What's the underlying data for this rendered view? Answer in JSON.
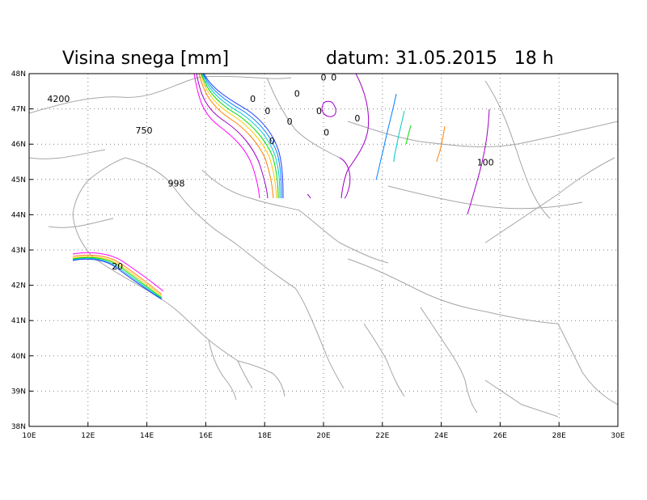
{
  "title": "Visina snega [mm]",
  "datum": "datum: 31.05.2015   18 h",
  "chart_data": {
    "type": "contour",
    "xlim": [
      10,
      30
    ],
    "ylim": [
      38,
      48
    ],
    "x_ticks": [
      "10E",
      "12E",
      "14E",
      "16E",
      "18E",
      "20E",
      "22E",
      "24E",
      "26E",
      "28E",
      "30E"
    ],
    "y_ticks": [
      "38N",
      "39N",
      "40N",
      "41N",
      "42N",
      "43N",
      "44N",
      "45N",
      "46N",
      "47N",
      "48N"
    ],
    "grid": true,
    "contour_labels": [
      {
        "text": "4200",
        "lon": 11.0,
        "lat": 47.2
      },
      {
        "text": "750",
        "lon": 13.9,
        "lat": 46.3
      },
      {
        "text": "998",
        "lon": 15.0,
        "lat": 44.8
      },
      {
        "text": "20",
        "lon": 13.0,
        "lat": 42.45
      },
      {
        "text": "0",
        "lon": 17.6,
        "lat": 47.2
      },
      {
        "text": "0",
        "lon": 18.1,
        "lat": 46.85
      },
      {
        "text": "0",
        "lon": 19.1,
        "lat": 47.35
      },
      {
        "text": "0",
        "lon": 20.0,
        "lat": 47.8
      },
      {
        "text": "0",
        "lon": 20.35,
        "lat": 47.8
      },
      {
        "text": "0",
        "lon": 19.85,
        "lat": 46.85
      },
      {
        "text": "0",
        "lon": 18.85,
        "lat": 46.55
      },
      {
        "text": "0",
        "lon": 18.25,
        "lat": 46.0
      },
      {
        "text": "0",
        "lon": 20.1,
        "lat": 46.25
      },
      {
        "text": "0",
        "lon": 21.15,
        "lat": 46.65
      },
      {
        "text": "100",
        "lon": 25.5,
        "lat": 45.4
      }
    ],
    "contour_colors": [
      "#ff00ff",
      "#a000c8",
      "#ff8000",
      "#ffc800",
      "#00dc00",
      "#00c8c8",
      "#0080ff",
      "#1e3cff"
    ]
  }
}
